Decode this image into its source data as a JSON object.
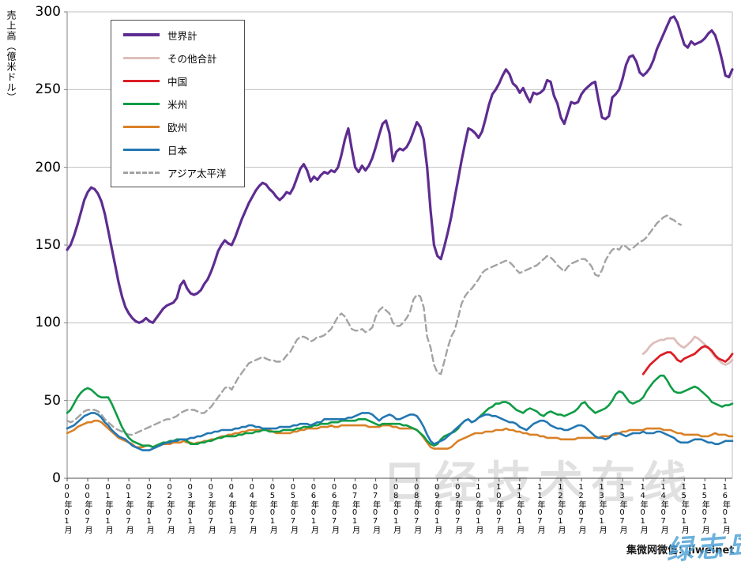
{
  "watermarks": {
    "center": "日经技术在线",
    "bottom_right": "集微网微信：jiweinet",
    "overlay_script": "绿志岛"
  },
  "chart_data": {
    "type": "line",
    "title": "",
    "ylabel": "売上高（億米ドル）",
    "xlabel": "",
    "ylim": [
      0,
      300
    ],
    "y_ticks": [
      0,
      50,
      100,
      150,
      200,
      250,
      300
    ],
    "grid": "horizontal",
    "legend_position": "top-left-inside",
    "x_unit": "month",
    "x_start": "2000-01",
    "x_end": "2016-03",
    "months_total": 195,
    "x_tick_step_months": 6,
    "x_tick_labels": [
      "00年01月",
      "00年07月",
      "01年01月",
      "01年07月",
      "02年01月",
      "02年07月",
      "03年01月",
      "03年07月",
      "04年01月",
      "04年07月",
      "05年01月",
      "05年07月",
      "06年01月",
      "06年07月",
      "07年01月",
      "07年07月",
      "08年01月",
      "08年07月",
      "09年01月",
      "09年07月",
      "10年01月",
      "10年07月",
      "11年01月",
      "11年07月",
      "12年01月",
      "12年07月",
      "13年01月",
      "13年07月",
      "14年01月",
      "14年07月",
      "15年01月",
      "15年07月",
      "16年01月"
    ],
    "draw_order": [
      6,
      1,
      4,
      3,
      5,
      2,
      0
    ],
    "series": [
      {
        "key": "world-total",
        "name": "世界計",
        "color": "#5E2C91",
        "style": "solid",
        "width": 3.2,
        "start_month": "2000-01",
        "start_index": 0,
        "values": [
          147,
          150,
          156,
          163,
          171,
          179,
          184,
          187,
          186,
          183,
          178,
          170,
          159,
          148,
          137,
          126,
          117,
          110,
          106,
          103,
          101,
          100,
          101,
          103,
          101,
          100,
          103,
          106,
          109,
          111,
          112,
          113,
          116,
          124,
          127,
          122,
          119,
          118,
          119,
          121,
          125,
          128,
          133,
          139,
          146,
          150,
          153,
          151,
          150,
          155,
          161,
          167,
          172,
          177,
          181,
          185,
          188,
          190,
          189,
          186,
          184,
          181,
          179,
          181,
          184,
          183,
          187,
          193,
          199,
          202,
          198,
          191,
          194,
          192,
          195,
          197,
          196,
          198,
          197,
          200,
          208,
          218,
          225,
          212,
          200,
          197,
          201,
          198,
          201,
          206,
          213,
          221,
          228,
          230,
          222,
          204,
          210,
          212,
          211,
          213,
          217,
          223,
          229,
          226,
          218,
          200,
          172,
          150,
          143,
          141,
          149,
          158,
          168,
          180,
          192,
          204,
          215,
          225,
          224,
          222,
          219,
          223,
          231,
          240,
          247,
          250,
          254,
          259,
          263,
          260,
          254,
          252,
          248,
          251,
          246,
          242,
          248,
          247,
          248,
          250,
          256,
          255,
          246,
          241,
          232,
          228,
          235,
          242,
          241,
          242,
          247,
          250,
          252,
          254,
          255,
          243,
          232,
          231,
          233,
          245,
          247,
          250,
          257,
          266,
          271,
          272,
          268,
          261,
          259,
          261,
          264,
          269,
          276,
          281,
          286,
          291,
          296,
          297,
          293,
          286,
          279,
          277,
          281,
          279,
          280,
          281,
          283,
          286,
          288,
          285,
          278,
          269,
          259,
          258,
          263
        ]
      },
      {
        "key": "other-total",
        "name": "その他合計",
        "color": "#DEBEBA",
        "style": "solid",
        "width": 2.8,
        "start_month": "2014-01",
        "start_index": 168,
        "values": [
          80,
          82,
          85,
          87,
          88,
          89,
          89,
          90,
          90,
          90,
          87,
          85,
          84,
          86,
          88,
          91,
          90,
          88,
          86,
          84,
          81,
          78,
          76,
          74,
          73,
          74,
          76
        ]
      },
      {
        "key": "china",
        "name": "中国",
        "color": "#DB1E26",
        "style": "solid",
        "width": 2.8,
        "start_month": "2014-01",
        "start_index": 168,
        "values": [
          67,
          70,
          73,
          75,
          77,
          79,
          80,
          81,
          81,
          79,
          76,
          75,
          77,
          78,
          79,
          80,
          82,
          84,
          85,
          84,
          82,
          79,
          77,
          76,
          75,
          77,
          80
        ]
      },
      {
        "key": "americas",
        "name": "米州",
        "color": "#0E9C44",
        "style": "solid",
        "width": 2.6,
        "start_month": "2000-01",
        "start_index": 0,
        "values": [
          42,
          44,
          48,
          52,
          55,
          57,
          58,
          57,
          55,
          53,
          52,
          52,
          52,
          48,
          43,
          38,
          33,
          29,
          26,
          24,
          23,
          22,
          21,
          21,
          21,
          20,
          21,
          22,
          23,
          23,
          24,
          24,
          25,
          25,
          25,
          24,
          22,
          22,
          22,
          23,
          23,
          24,
          24,
          25,
          26,
          26,
          27,
          27,
          27,
          27,
          28,
          28,
          29,
          29,
          29,
          30,
          30,
          31,
          31,
          30,
          30,
          30,
          30,
          31,
          31,
          31,
          31,
          32,
          32,
          33,
          33,
          33,
          34,
          34,
          35,
          35,
          35,
          36,
          36,
          36,
          37,
          37,
          37,
          37,
          37,
          38,
          38,
          38,
          37,
          36,
          35,
          34,
          35,
          35,
          35,
          35,
          35,
          35,
          34,
          34,
          33,
          32,
          31,
          29,
          27,
          24,
          22,
          21,
          22,
          25,
          27,
          28,
          29,
          30,
          32,
          35,
          37,
          38,
          36,
          37,
          39,
          41,
          43,
          45,
          46,
          48,
          48,
          49,
          49,
          48,
          46,
          44,
          43,
          42,
          44,
          45,
          44,
          43,
          41,
          40,
          42,
          43,
          42,
          41,
          41,
          40,
          41,
          42,
          43,
          45,
          48,
          49,
          46,
          44,
          42,
          43,
          44,
          45,
          47,
          50,
          54,
          56,
          55,
          52,
          49,
          48,
          49,
          50,
          52,
          56,
          59,
          62,
          64,
          66,
          66,
          63,
          59,
          56,
          55,
          55,
          56,
          57,
          58,
          59,
          58,
          56,
          54,
          52,
          49,
          48,
          47,
          46,
          47,
          47,
          48
        ]
      },
      {
        "key": "europe",
        "name": "欧州",
        "color": "#D98127",
        "style": "solid",
        "width": 2.6,
        "start_month": "2000-01",
        "start_index": 0,
        "values": [
          29,
          30,
          31,
          33,
          34,
          35,
          36,
          36,
          37,
          37,
          36,
          34,
          32,
          30,
          28,
          26,
          25,
          24,
          23,
          22,
          20,
          20,
          20,
          21,
          21,
          20,
          21,
          21,
          22,
          22,
          22,
          23,
          23,
          23,
          24,
          23,
          23,
          22,
          23,
          23,
          24,
          24,
          25,
          25,
          26,
          27,
          27,
          28,
          28,
          29,
          29,
          30,
          30,
          31,
          31,
          31,
          31,
          31,
          31,
          31,
          30,
          29,
          29,
          29,
          29,
          29,
          30,
          30,
          31,
          31,
          32,
          32,
          32,
          32,
          33,
          33,
          33,
          34,
          33,
          33,
          34,
          34,
          34,
          34,
          34,
          34,
          34,
          34,
          33,
          33,
          33,
          33,
          34,
          34,
          34,
          33,
          33,
          32,
          32,
          32,
          32,
          32,
          31,
          29,
          26,
          23,
          20,
          19,
          19,
          19,
          19,
          19,
          20,
          22,
          24,
          25,
          26,
          27,
          28,
          29,
          29,
          29,
          30,
          30,
          30,
          31,
          31,
          31,
          32,
          31,
          31,
          30,
          30,
          29,
          29,
          28,
          28,
          28,
          27,
          27,
          26,
          26,
          26,
          26,
          25,
          25,
          25,
          25,
          25,
          26,
          26,
          26,
          26,
          26,
          26,
          26,
          27,
          27,
          27,
          28,
          28,
          29,
          30,
          30,
          31,
          31,
          31,
          31,
          31,
          32,
          32,
          32,
          32,
          32,
          31,
          31,
          31,
          30,
          29,
          29,
          28,
          28,
          28,
          28,
          28,
          27,
          27,
          27,
          28,
          29,
          28,
          28,
          28,
          27,
          27
        ]
      },
      {
        "key": "japan",
        "name": "日本",
        "color": "#2377B2",
        "style": "solid",
        "width": 2.6,
        "start_month": "2000-01",
        "start_index": 0,
        "values": [
          32,
          33,
          34,
          36,
          38,
          40,
          41,
          42,
          42,
          41,
          39,
          36,
          34,
          31,
          29,
          27,
          26,
          25,
          23,
          21,
          20,
          19,
          18,
          18,
          18,
          19,
          20,
          21,
          22,
          23,
          23,
          24,
          24,
          25,
          25,
          25,
          26,
          26,
          27,
          27,
          28,
          29,
          29,
          30,
          30,
          31,
          31,
          31,
          31,
          32,
          32,
          33,
          33,
          34,
          34,
          33,
          33,
          32,
          32,
          32,
          32,
          32,
          33,
          33,
          33,
          33,
          34,
          34,
          35,
          35,
          35,
          34,
          35,
          36,
          36,
          38,
          38,
          38,
          38,
          38,
          38,
          38,
          39,
          39,
          40,
          41,
          42,
          42,
          42,
          41,
          39,
          37,
          39,
          40,
          41,
          40,
          38,
          38,
          39,
          40,
          41,
          41,
          40,
          37,
          33,
          28,
          24,
          22,
          23,
          24,
          25,
          27,
          29,
          31,
          33,
          35,
          37,
          38,
          36,
          37,
          39,
          40,
          41,
          41,
          40,
          40,
          39,
          38,
          37,
          36,
          36,
          35,
          33,
          32,
          31,
          33,
          35,
          36,
          37,
          37,
          36,
          34,
          33,
          32,
          32,
          31,
          31,
          32,
          33,
          34,
          34,
          33,
          31,
          29,
          27,
          26,
          26,
          25,
          26,
          28,
          29,
          29,
          28,
          27,
          28,
          29,
          29,
          29,
          30,
          29,
          29,
          29,
          30,
          30,
          29,
          28,
          27,
          26,
          24,
          23,
          23,
          23,
          24,
          25,
          25,
          25,
          24,
          23,
          23,
          22,
          22,
          23,
          24,
          24,
          24
        ]
      },
      {
        "key": "asia-pacific",
        "name": "アジア太平洋",
        "color": "#A3A3A6",
        "style": "dashed",
        "width": 2.4,
        "start_month": "2000-01",
        "start_index": 0,
        "values": [
          37,
          36,
          37,
          39,
          41,
          43,
          44,
          44,
          44,
          43,
          41,
          38,
          36,
          34,
          32,
          31,
          30,
          29,
          28,
          28,
          29,
          30,
          31,
          32,
          33,
          34,
          35,
          36,
          37,
          38,
          38,
          39,
          40,
          42,
          43,
          44,
          44,
          44,
          43,
          42,
          42,
          44,
          46,
          49,
          52,
          55,
          58,
          59,
          57,
          61,
          65,
          68,
          71,
          74,
          75,
          76,
          77,
          78,
          77,
          76,
          76,
          75,
          75,
          76,
          79,
          81,
          85,
          89,
          91,
          91,
          90,
          88,
          89,
          91,
          91,
          92,
          94,
          96,
          100,
          104,
          106,
          104,
          100,
          96,
          95,
          95,
          96,
          94,
          95,
          97,
          104,
          108,
          110,
          108,
          106,
          100,
          98,
          98,
          100,
          103,
          107,
          115,
          118,
          117,
          110,
          91,
          84,
          73,
          68,
          67,
          75,
          84,
          91,
          95,
          103,
          112,
          117,
          120,
          122,
          125,
          128,
          132,
          134,
          135,
          136,
          137,
          138,
          139,
          140,
          139,
          137,
          134,
          132,
          133,
          134,
          135,
          136,
          137,
          139,
          141,
          143,
          142,
          140,
          137,
          135,
          133,
          136,
          138,
          139,
          140,
          141,
          141,
          139,
          136,
          131,
          130,
          134,
          140,
          144,
          147,
          148,
          147,
          150,
          149,
          147,
          148,
          150,
          152,
          153,
          155,
          158,
          161,
          164,
          166,
          168,
          169,
          167,
          166,
          164,
          163
        ]
      }
    ]
  }
}
